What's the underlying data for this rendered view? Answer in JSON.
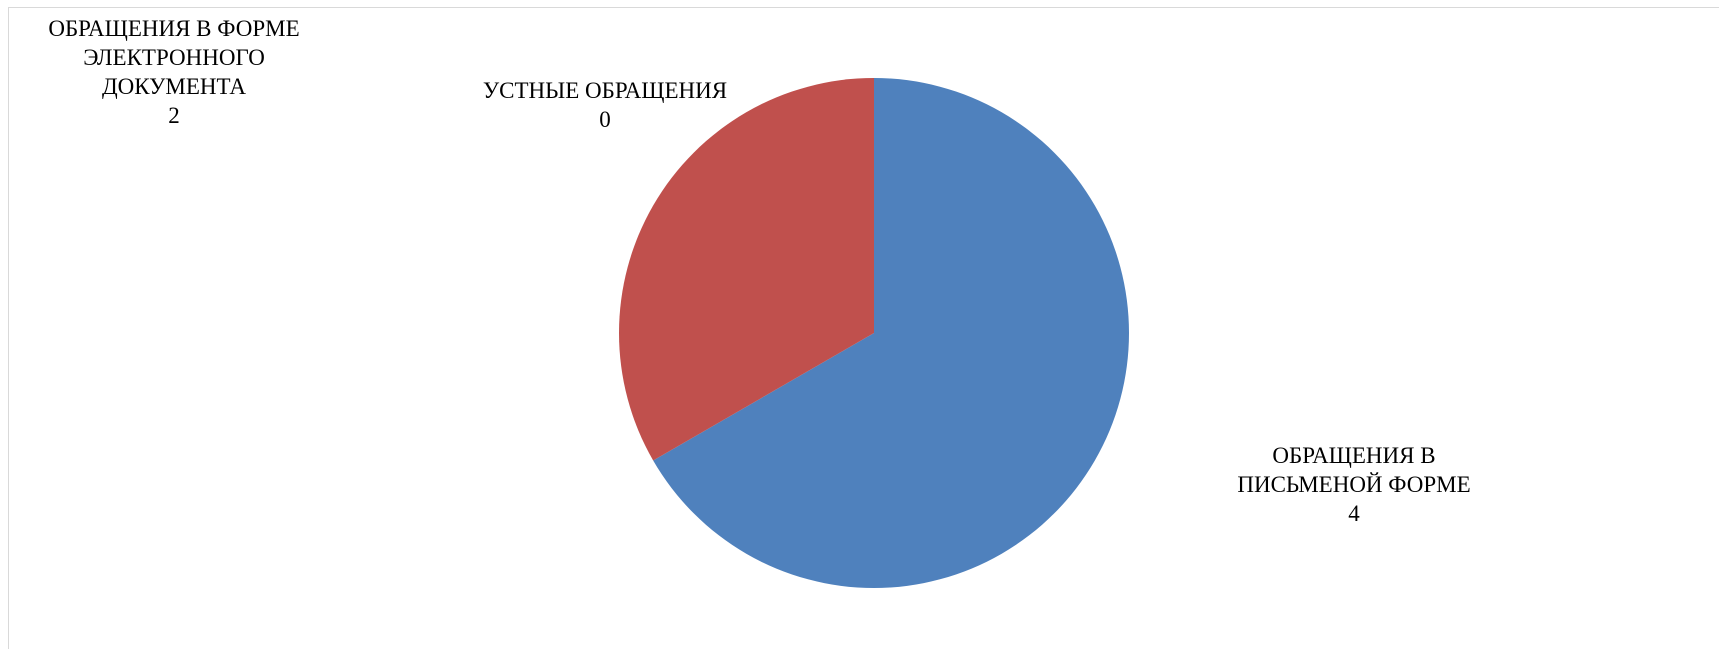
{
  "chart_data": {
    "type": "pie",
    "title": "",
    "categories": [
      "ОБРАЩЕНИЯ В ПИСЬМЕНОЙ ФОРМЕ",
      "УСТНЫЕ ОБРАЩЕНИЯ",
      "ОБРАЩЕНИЯ В ФОРМЕ ЭЛЕКТРОННОГО ДОКУМЕНТА"
    ],
    "values": [
      4,
      0,
      2
    ],
    "colors": [
      "#4f81bd",
      "#c0504d",
      "#9bbb59"
    ],
    "legend": "none",
    "labels": {
      "electronic": {
        "lines": [
          "ОБРАЩЕНИЯ В ФОРМЕ",
          "ЭЛЕКТРОННОГО",
          "ДОКУМЕНТА"
        ],
        "value": "2"
      },
      "oral": {
        "lines": [
          "УСТНЫЕ ОБРАЩЕНИЯ"
        ],
        "value": "0"
      },
      "written": {
        "lines": [
          "ОБРАЩЕНИЯ В",
          "ПИСЬМЕНОЙ ФОРМЕ"
        ],
        "value": "4"
      }
    }
  }
}
